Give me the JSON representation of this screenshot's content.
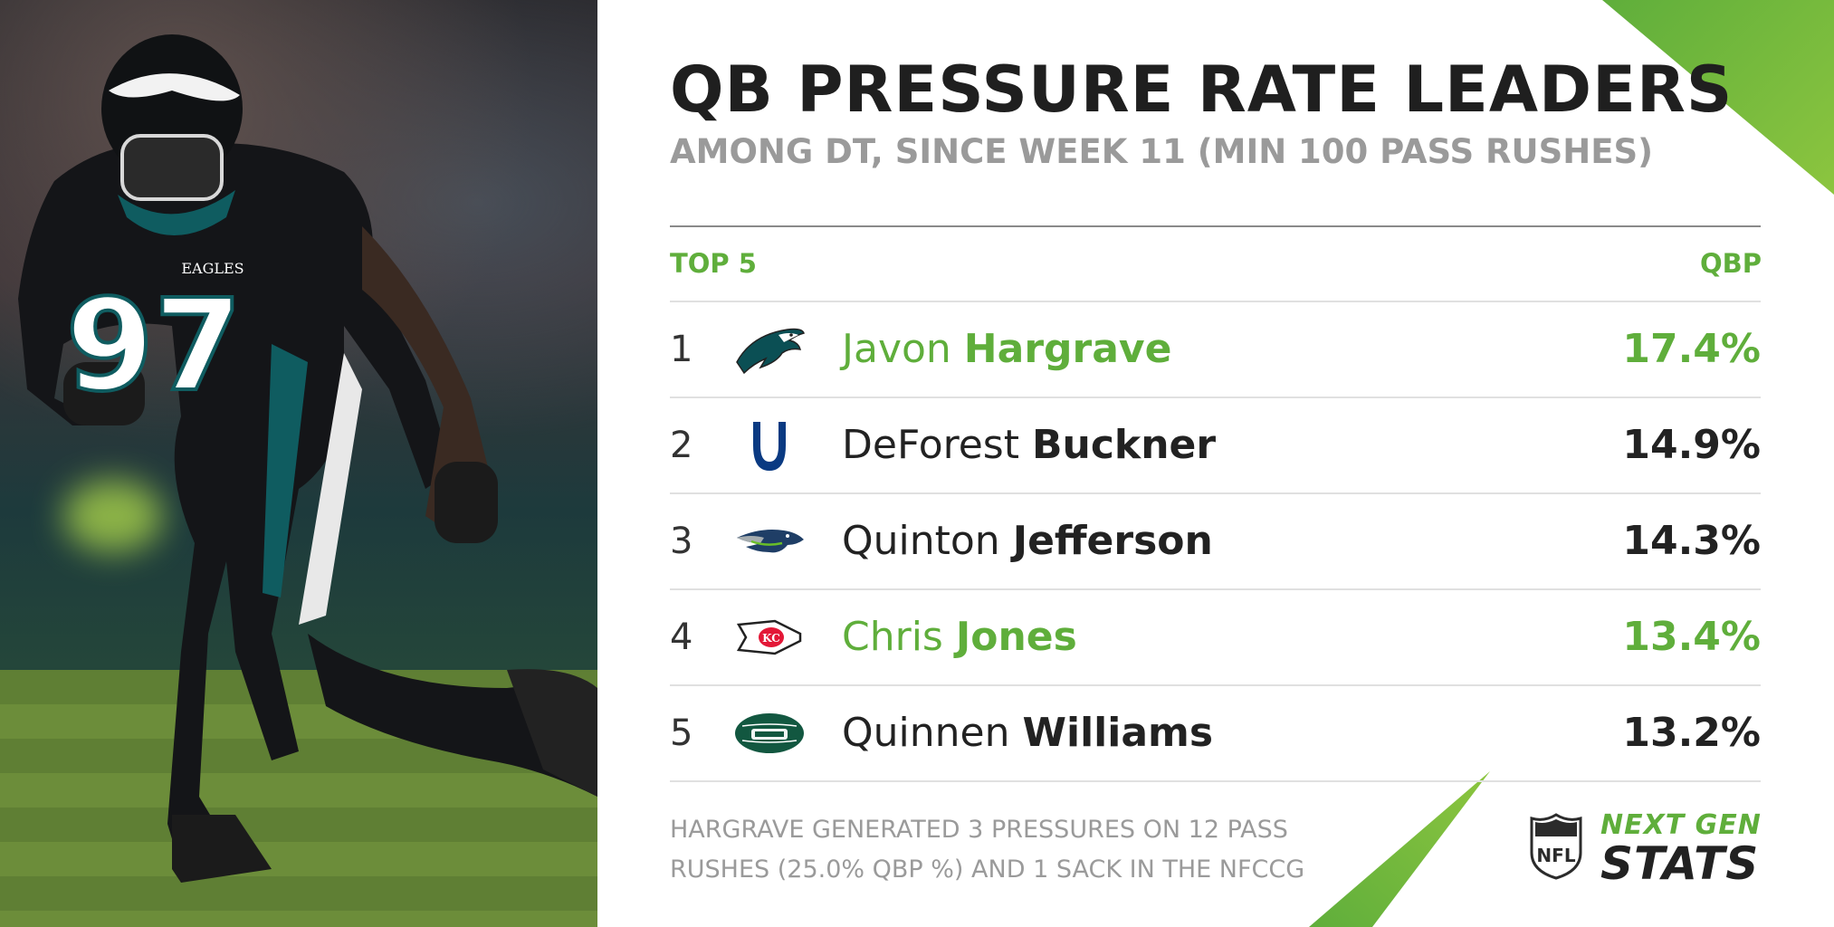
{
  "title": "QB PRESSURE RATE LEADERS",
  "subtitle": "AMONG DT, SINCE WEEK 11 (MIN 100 PASS RUSHES)",
  "header": {
    "left": "TOP 5",
    "right": "QBP"
  },
  "rows": [
    {
      "rank": "1",
      "first": "Javon",
      "last": "Hargrave",
      "value": "17.4%",
      "team_icon": "eagles-logo",
      "highlight": true
    },
    {
      "rank": "2",
      "first": "DeForest",
      "last": "Buckner",
      "value": "14.9%",
      "team_icon": "colts-logo",
      "highlight": false
    },
    {
      "rank": "3",
      "first": "Quinton",
      "last": "Jefferson",
      "value": "14.3%",
      "team_icon": "seahawks-logo",
      "highlight": false
    },
    {
      "rank": "4",
      "first": "Chris",
      "last": "Jones",
      "value": "13.4%",
      "team_icon": "chiefs-logo",
      "highlight": true
    },
    {
      "rank": "5",
      "first": "Quinnen",
      "last": "Williams",
      "value": "13.2%",
      "team_icon": "jets-logo",
      "highlight": false
    }
  ],
  "footnote": {
    "line1": "HARGRAVE GENERATED 3 PRESSURES ON 12 PASS",
    "line2": "RUSHES (25.0% QBP %) AND 1 SACK IN THE NFCCG"
  },
  "brand": {
    "nfl_shield": "NFL",
    "ngs_line1": "NEXT GEN",
    "ngs_line2": "STATS"
  },
  "photo": {
    "jersey_number": "97",
    "jersey_team": "EAGLES"
  },
  "colors": {
    "accent": "#5fae3b",
    "text": "#222222",
    "muted": "#9a9a9a"
  }
}
